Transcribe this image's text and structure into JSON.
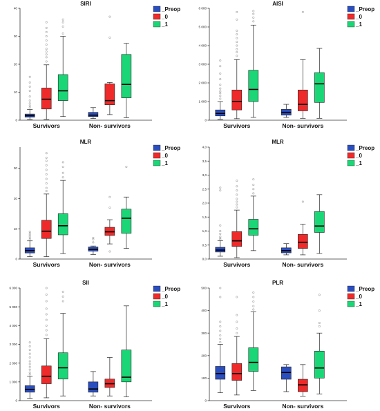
{
  "colors": {
    "Preop": "#2b4ebf",
    "0": "#ee2a2a",
    "1": "#1bd676",
    "outlier": "#a6a6a6",
    "median": "#000000"
  },
  "chart_data": [
    {
      "type": "box",
      "title": "SIRI",
      "categories": [
        "Survivors",
        "Non- survivors"
      ],
      "yticks": [
        0,
        10,
        20,
        30,
        40
      ],
      "ylim": [
        0,
        40
      ],
      "legend_placement": "top-right",
      "series": [
        {
          "name": "_Preop",
          "boxes": [
            {
              "min": 0.3,
              "q1": 1.1,
              "median": 1.6,
              "q3": 2.2,
              "max": 3.8,
              "outliers": [
                4.5,
                5.2,
                6.0,
                7.0,
                8.5,
                10.5,
                12,
                13.5,
                15.5
              ]
            },
            {
              "min": 0.6,
              "q1": 1.3,
              "median": 1.8,
              "q3": 2.8,
              "max": 4.5,
              "outliers": []
            }
          ]
        },
        {
          "name": "_0",
          "boxes": [
            {
              "min": 0.3,
              "q1": 4.0,
              "median": 7.5,
              "q3": 11.5,
              "max": 19.8,
              "outliers": [
                21,
                22.5,
                23.5,
                24.5,
                25.5,
                27,
                28.5,
                30,
                31.5,
                33,
                35
              ]
            },
            {
              "min": 2.0,
              "q1": 5.5,
              "median": 7.0,
              "q3": 13.0,
              "max": 13.5,
              "outliers": [
                29.5,
                37
              ]
            }
          ]
        },
        {
          "name": "_1",
          "boxes": [
            {
              "min": 1.3,
              "q1": 7.0,
              "median": 10.5,
              "q3": 16.3,
              "max": 30.0,
              "outliers": [
                31,
                33.5,
                35,
                36
              ]
            },
            {
              "min": 0.9,
              "q1": 8.0,
              "median": 12.8,
              "q3": 23.5,
              "max": 27.5,
              "outliers": []
            }
          ]
        }
      ]
    },
    {
      "type": "box",
      "title": "AISI",
      "categories": [
        "Survivors",
        "Non- survivors"
      ],
      "yticks": [
        0,
        1000,
        2000,
        3000,
        4000,
        5000,
        6000
      ],
      "yticklabels": [
        "0",
        "1 000",
        "2 000",
        "3 000",
        "4 000",
        "5 000",
        "6 000"
      ],
      "ylim": [
        0,
        6000
      ],
      "legend_placement": "top-right",
      "series": [
        {
          "name": "_Preop",
          "boxes": [
            {
              "min": 50,
              "q1": 230,
              "median": 360,
              "q3": 550,
              "max": 1000,
              "outliers": [
                1150,
                1300,
                1450,
                1550,
                1700,
                1900,
                2200,
                2500,
                2900,
                3200
              ]
            },
            {
              "min": 150,
              "q1": 270,
              "median": 420,
              "q3": 580,
              "max": 850,
              "outliers": []
            }
          ]
        },
        {
          "name": "_0",
          "boxes": [
            {
              "min": 80,
              "q1": 550,
              "median": 1000,
              "q3": 1620,
              "max": 3250,
              "outliers": [
                3450,
                3650,
                3800,
                4000,
                4200,
                4400,
                4600,
                4800,
                5400,
                5800
              ]
            },
            {
              "min": 100,
              "q1": 500,
              "median": 850,
              "q3": 1620,
              "max": 3250,
              "outliers": [
                5800
              ]
            }
          ]
        },
        {
          "name": "_1",
          "boxes": [
            {
              "min": 150,
              "q1": 1000,
              "median": 1650,
              "q3": 2680,
              "max": 5100,
              "outliers": [
                5300,
                5500,
                5700,
                5850
              ]
            },
            {
              "min": 100,
              "q1": 950,
              "median": 1950,
              "q3": 2550,
              "max": 3850,
              "outliers": []
            }
          ]
        }
      ]
    },
    {
      "type": "box",
      "title": "NLR",
      "categories": [
        "Survivors",
        "Non- survivors"
      ],
      "yticks": [
        0,
        10,
        20,
        30
      ],
      "ylim": [
        0,
        37
      ],
      "legend_placement": "top-right",
      "series": [
        {
          "name": "_Preop",
          "boxes": [
            {
              "min": 0.8,
              "q1": 2.0,
              "median": 2.8,
              "q3": 3.7,
              "max": 6.0,
              "outliers": [
                6.5,
                7.0,
                7.5,
                8.0,
                8.5,
                9.0
              ]
            },
            {
              "min": 1.5,
              "q1": 2.6,
              "median": 3.2,
              "q3": 4.0,
              "max": 4.3,
              "outliers": [
                5.5,
                6.5,
                7.0
              ]
            }
          ]
        },
        {
          "name": "_0",
          "boxes": [
            {
              "min": 0.8,
              "q1": 6.8,
              "median": 9.2,
              "q3": 12.8,
              "max": 21.5,
              "outliers": [
                22.5,
                23.5,
                25,
                26.5,
                28,
                29.5,
                31,
                32.5,
                33.5,
                35
              ]
            },
            {
              "min": 5.0,
              "q1": 7.8,
              "median": 9.0,
              "q3": 10.5,
              "max": 13.0,
              "outliers": [
                2.5,
                17,
                20.5
              ]
            }
          ]
        },
        {
          "name": "_1",
          "boxes": [
            {
              "min": 1.8,
              "q1": 8.0,
              "median": 11.0,
              "q3": 15.0,
              "max": 26.0,
              "outliers": [
                27,
                28.5,
                30.5,
                32
              ]
            },
            {
              "min": 3.5,
              "q1": 8.5,
              "median": 13.5,
              "q3": 16.5,
              "max": 20.5,
              "outliers": [
                30.5
              ]
            }
          ]
        }
      ]
    },
    {
      "type": "box",
      "title": "MLR",
      "categories": [
        "Survivors",
        "Non- survivors"
      ],
      "yticks": [
        0.0,
        0.5,
        1.0,
        1.5,
        2.0,
        2.5,
        3.0,
        3.5,
        4.0
      ],
      "yticklabels": [
        "0,0",
        "0,5",
        "1,0",
        "1,5",
        "2,0",
        "2,5",
        "3,0",
        "3,5",
        "4,0"
      ],
      "ylim": [
        0,
        4
      ],
      "legend_placement": "top-right",
      "series": [
        {
          "name": "_Preop",
          "boxes": [
            {
              "min": 0.1,
              "q1": 0.25,
              "median": 0.32,
              "q3": 0.42,
              "max": 0.65,
              "outliers": [
                0.7,
                0.75,
                0.8,
                0.9,
                1.0,
                1.2,
                2.45,
                2.55
              ]
            },
            {
              "min": 0.15,
              "q1": 0.22,
              "median": 0.3,
              "q3": 0.4,
              "max": 0.55,
              "outliers": []
            }
          ]
        },
        {
          "name": "_0",
          "boxes": [
            {
              "min": 0.05,
              "q1": 0.45,
              "median": 0.65,
              "q3": 0.98,
              "max": 1.75,
              "outliers": [
                1.85,
                1.95,
                2.05,
                2.15,
                2.3,
                2.45,
                2.6,
                2.8
              ]
            },
            {
              "min": 0.15,
              "q1": 0.38,
              "median": 0.6,
              "q3": 0.88,
              "max": 1.25,
              "outliers": [
                2.05
              ]
            }
          ]
        },
        {
          "name": "_1",
          "boxes": [
            {
              "min": 0.3,
              "q1": 0.85,
              "median": 1.08,
              "q3": 1.42,
              "max": 2.25,
              "outliers": [
                2.35,
                2.5,
                2.65,
                2.85
              ]
            },
            {
              "min": 0.2,
              "q1": 0.95,
              "median": 1.18,
              "q3": 1.7,
              "max": 2.3,
              "outliers": []
            }
          ]
        }
      ]
    },
    {
      "type": "box",
      "title": "SII",
      "categories": [
        "Survivors",
        "Non- survivors"
      ],
      "yticks": [
        0,
        1000,
        2000,
        3000,
        4000,
        5000,
        6000
      ],
      "yticklabels": [
        "0",
        "1 000",
        "2 000",
        "3 000",
        "4 000",
        "5 000",
        "6 000"
      ],
      "ylim": [
        0,
        6000
      ],
      "legend_placement": "top-right",
      "series": [
        {
          "name": "_Preop",
          "boxes": [
            {
              "min": 120,
              "q1": 450,
              "median": 600,
              "q3": 800,
              "max": 1300,
              "outliers": [
                1400,
                1500,
                1650,
                1800,
                1950,
                2100,
                2300,
                2500,
                2700,
                2900,
                3100
              ]
            },
            {
              "min": 250,
              "q1": 450,
              "median": 620,
              "q3": 1000,
              "max": 1550,
              "outliers": []
            }
          ]
        },
        {
          "name": "_0",
          "boxes": [
            {
              "min": 150,
              "q1": 900,
              "median": 1300,
              "q3": 1850,
              "max": 3300,
              "outliers": [
                3500,
                3750,
                4000,
                4300,
                4600,
                4900,
                5300,
                5650,
                6000
              ]
            },
            {
              "min": 250,
              "q1": 700,
              "median": 900,
              "q3": 1150,
              "max": 2300,
              "outliers": []
            }
          ]
        },
        {
          "name": "_1",
          "boxes": [
            {
              "min": 250,
              "q1": 1150,
              "median": 1750,
              "q3": 2550,
              "max": 4650,
              "outliers": [
                5300,
                5550,
                5800
              ]
            },
            {
              "min": 200,
              "q1": 1000,
              "median": 1250,
              "q3": 2700,
              "max": 5050,
              "outliers": []
            }
          ]
        }
      ]
    },
    {
      "type": "box",
      "title": "PLR",
      "categories": [
        "Survivors",
        "Non- survivors"
      ],
      "yticks": [
        0,
        100,
        200,
        300,
        400,
        500
      ],
      "ylim": [
        0,
        500
      ],
      "legend_placement": "top-right",
      "series": [
        {
          "name": "_Preop",
          "boxes": [
            {
              "min": 35,
              "q1": 95,
              "median": 120,
              "q3": 152,
              "max": 250,
              "outliers": [
                260,
                275,
                290,
                310,
                330,
                350,
                460,
                500
              ]
            },
            {
              "min": 40,
              "q1": 95,
              "median": 125,
              "q3": 150,
              "max": 160,
              "outliers": []
            }
          ]
        },
        {
          "name": "_0",
          "boxes": [
            {
              "min": 25,
              "q1": 90,
              "median": 120,
              "q3": 165,
              "max": 285,
              "outliers": [
                300,
                320,
                350,
                380,
                460
              ]
            },
            {
              "min": 20,
              "q1": 40,
              "median": 70,
              "q3": 95,
              "max": 160,
              "outliers": []
            }
          ]
        },
        {
          "name": "_1",
          "boxes": [
            {
              "min": 45,
              "q1": 130,
              "median": 170,
              "q3": 235,
              "max": 395,
              "outliers": [
                405,
                420,
                440,
                460,
                480
              ]
            },
            {
              "min": 30,
              "q1": 100,
              "median": 145,
              "q3": 220,
              "max": 300,
              "outliers": [
                330,
                345,
                400,
                470
              ]
            }
          ]
        }
      ]
    }
  ]
}
